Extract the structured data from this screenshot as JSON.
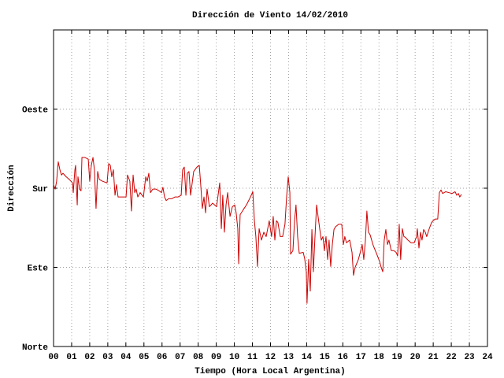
{
  "chart_data": {
    "type": "line",
    "title": "Dirección de Viento 14/02/2010",
    "xlabel": "Tiempo (Hora Local Argentina)",
    "ylabel": "Dirección",
    "color": "#cc0000",
    "grid": true,
    "xlim": [
      0,
      24
    ],
    "ylim": [
      0,
      360
    ],
    "xticks": [
      {
        "value": 0,
        "label": "00"
      },
      {
        "value": 1,
        "label": "01"
      },
      {
        "value": 2,
        "label": "02"
      },
      {
        "value": 3,
        "label": "03"
      },
      {
        "value": 4,
        "label": "04"
      },
      {
        "value": 5,
        "label": "05"
      },
      {
        "value": 6,
        "label": "06"
      },
      {
        "value": 7,
        "label": "07"
      },
      {
        "value": 8,
        "label": "08"
      },
      {
        "value": 9,
        "label": "09"
      },
      10,
      11,
      12,
      13,
      14,
      15,
      16,
      17,
      18,
      19,
      20,
      21,
      22,
      23,
      24
    ],
    "yticks": [
      {
        "value": 0,
        "label": "Norte"
      },
      {
        "value": 90,
        "label": "Este"
      },
      {
        "value": 180,
        "label": "Sur"
      },
      {
        "value": 270,
        "label": "Oeste"
      }
    ],
    "x": [
      0.0,
      0.09,
      0.17,
      0.26,
      0.35,
      0.44,
      0.52,
      0.7,
      0.87,
      1.05,
      1.09,
      1.18,
      1.22,
      1.26,
      1.31,
      1.35,
      1.44,
      1.52,
      1.57,
      1.74,
      1.92,
      2.0,
      2.09,
      2.18,
      2.26,
      2.35,
      2.44,
      2.53,
      2.7,
      2.96,
      3.05,
      3.14,
      3.22,
      3.31,
      3.4,
      3.48,
      3.57,
      3.79,
      4.01,
      4.09,
      4.22,
      4.31,
      4.4,
      4.49,
      4.57,
      4.66,
      4.79,
      4.97,
      5.1,
      5.18,
      5.27,
      5.36,
      5.49,
      5.66,
      5.84,
      5.97,
      6.05,
      6.14,
      6.23,
      6.36,
      6.53,
      6.71,
      6.88,
      7.06,
      7.14,
      7.23,
      7.32,
      7.4,
      7.49,
      7.58,
      7.75,
      7.93,
      8.06,
      8.14,
      8.23,
      8.32,
      8.41,
      8.49,
      8.62,
      8.8,
      9.02,
      9.1,
      9.19,
      9.28,
      9.36,
      9.45,
      9.54,
      9.63,
      9.76,
      9.89,
      10.02,
      10.1,
      10.19,
      10.24,
      10.32,
      10.45,
      10.54,
      10.67,
      10.89,
      11.02,
      11.11,
      11.19,
      11.28,
      11.37,
      11.5,
      11.63,
      11.76,
      11.93,
      12.06,
      12.15,
      12.24,
      12.33,
      12.41,
      12.54,
      12.67,
      12.8,
      12.89,
      12.98,
      13.07,
      13.11,
      13.24,
      13.33,
      13.41,
      13.5,
      13.59,
      13.81,
      13.89,
      13.98,
      14.02,
      14.11,
      14.2,
      14.29,
      14.37,
      14.46,
      14.55,
      14.63,
      14.72,
      14.81,
      14.9,
      14.98,
      15.07,
      15.16,
      15.24,
      15.33,
      15.42,
      15.51,
      15.59,
      15.77,
      15.94,
      16.03,
      16.11,
      16.2,
      16.38,
      16.51,
      16.59,
      16.68,
      16.86,
      16.99,
      17.07,
      17.16,
      17.25,
      17.33,
      17.42,
      17.51,
      17.68,
      17.86,
      18.03,
      18.12,
      18.21,
      18.29,
      18.38,
      18.47,
      18.55,
      18.68,
      18.82,
      18.95,
      19.03,
      19.12,
      19.2,
      19.29,
      19.38,
      19.47,
      19.6,
      19.77,
      19.95,
      20.08,
      20.12,
      20.21,
      20.3,
      20.38,
      20.47,
      20.56,
      20.64,
      20.78,
      20.91,
      20.99,
      21.12,
      21.25,
      21.34,
      21.43,
      21.52,
      21.69,
      21.86,
      22.04,
      22.21,
      22.3,
      22.39,
      22.47,
      22.56
    ],
    "values": [
      184,
      179,
      188,
      210,
      201,
      195,
      197,
      193,
      190,
      186,
      175,
      201,
      206,
      184,
      161,
      193,
      179,
      177,
      215,
      215,
      213,
      188,
      206,
      215,
      201,
      157,
      199,
      190,
      188,
      186,
      208,
      206,
      193,
      201,
      172,
      184,
      170,
      170,
      170,
      195,
      188,
      154,
      195,
      175,
      179,
      170,
      175,
      170,
      193,
      188,
      197,
      175,
      179,
      179,
      177,
      175,
      181,
      170,
      166,
      168,
      168,
      170,
      170,
      172,
      201,
      204,
      172,
      197,
      199,
      172,
      199,
      204,
      206,
      184,
      157,
      170,
      152,
      179,
      159,
      163,
      159,
      172,
      186,
      134,
      172,
      130,
      161,
      175,
      148,
      159,
      161,
      152,
      134,
      94,
      150,
      154,
      157,
      161,
      170,
      176,
      143,
      125,
      91,
      134,
      121,
      130,
      125,
      143,
      125,
      148,
      121,
      143,
      141,
      125,
      125,
      139,
      170,
      193,
      175,
      105,
      109,
      143,
      161,
      125,
      106,
      107,
      100,
      85,
      49,
      99,
      63,
      133,
      85,
      125,
      161,
      148,
      134,
      121,
      125,
      109,
      125,
      99,
      121,
      91,
      116,
      133,
      136,
      139,
      139,
      116,
      125,
      118,
      121,
      107,
      81,
      90,
      99,
      109,
      116,
      99,
      121,
      154,
      130,
      127,
      115,
      106,
      97,
      90,
      85,
      121,
      133,
      116,
      121,
      109,
      109,
      107,
      103,
      139,
      99,
      134,
      125,
      124,
      121,
      118,
      118,
      125,
      134,
      112,
      130,
      121,
      133,
      130,
      125,
      134,
      141,
      143,
      145,
      145,
      175,
      178,
      174,
      176,
      175,
      174,
      176,
      172,
      174,
      170,
      173
    ]
  }
}
